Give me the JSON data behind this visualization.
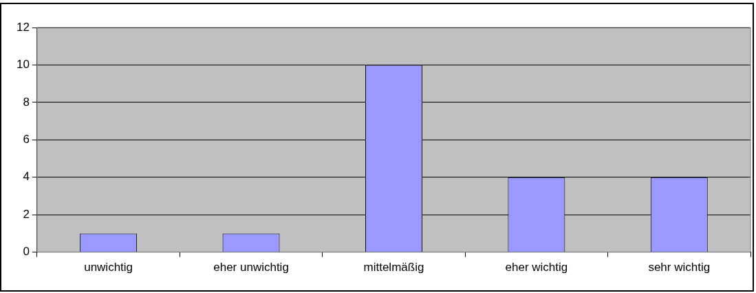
{
  "chart_data": {
    "type": "bar",
    "categories": [
      "unwichtig",
      "eher unwichtig",
      "mittelmäßig",
      "eher wichtig",
      "sehr wichtig"
    ],
    "values": [
      1,
      1,
      10,
      4,
      4
    ],
    "color": "#9999ff",
    "ylim": [
      0,
      12
    ],
    "yticks": [
      0,
      2,
      4,
      6,
      8,
      10,
      12
    ],
    "grid": "y",
    "legend": false
  }
}
